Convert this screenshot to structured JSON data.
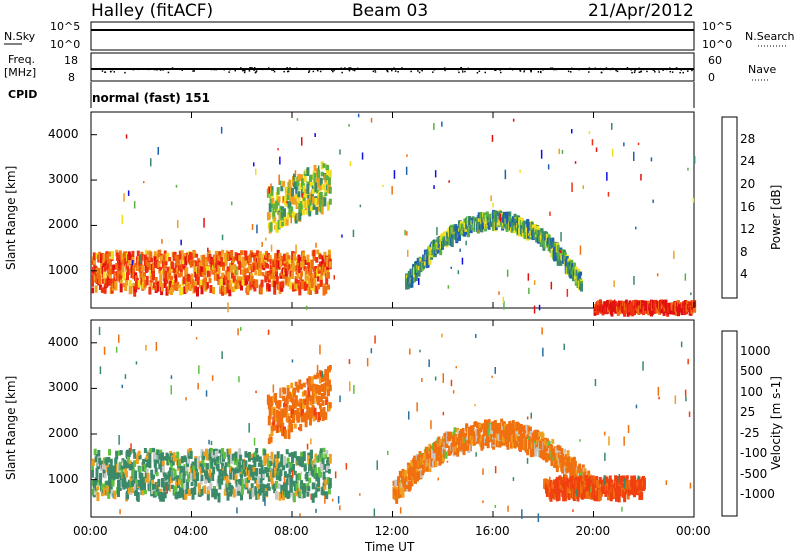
{
  "header": {
    "station": "Halley (fitACF)",
    "beam": "Beam 03",
    "date": "21/Apr/2012"
  },
  "aux_panels": {
    "nsky_label": "N.Sky",
    "nsearch_label": "N.Search",
    "nsky_ticks": [
      "10^5",
      "10^0"
    ],
    "nsearch_ticks": [
      "10^5",
      "10^0"
    ],
    "freq_label": "Freq.",
    "freq_unit": "[MHz]",
    "freq_ticks": [
      "18",
      "8"
    ],
    "nave_label": "Nave",
    "nave_ticks": [
      "60",
      "0"
    ],
    "cpid_label": "CPID",
    "cpid_value": "normal (fast) 151"
  },
  "axes": {
    "ylabel": "Slant Range [km]",
    "xlabel": "Time UT",
    "x_ticks": [
      "00:00",
      "04:00",
      "08:00",
      "12:00",
      "16:00",
      "20:00",
      "00:00"
    ],
    "y_ticks": [
      "1000",
      "2000",
      "3000",
      "4000"
    ]
  },
  "colorbars": {
    "power": {
      "label": "Power [dB]",
      "ticks": [
        "28",
        "24",
        "20",
        "16",
        "12",
        "8",
        "4"
      ],
      "colors": [
        "#1010e0",
        "#2060b0",
        "#3a8a6a",
        "#5ab040",
        "#f0e020",
        "#f0a020",
        "#f07010",
        "#f03010",
        "#e01010"
      ]
    },
    "velocity": {
      "label": "Velocity [m s-1]",
      "ticks": [
        "1000",
        "500",
        "100",
        "25",
        "-25",
        "-100",
        "-500",
        "-1000"
      ],
      "colors": [
        "#1e40c0",
        "#2a70a0",
        "#3a8a6a",
        "#60c040",
        "#c8c8c8",
        "#f0a020",
        "#f07010",
        "#f04010",
        "#e01010"
      ]
    }
  },
  "chart_data": [
    {
      "type": "heatmap",
      "title": "Power",
      "xlabel": "Time UT",
      "ylabel": "Slant Range [km]",
      "xlim": [
        "00:00",
        "24:00"
      ],
      "ylim": [
        180,
        4500
      ],
      "colorbar_range": [
        0,
        30
      ],
      "colorbar_label": "Power [dB]",
      "features": [
        {
          "t_start": 0,
          "t_end": 9.5,
          "range_center": 1050,
          "thickness": 420,
          "value_db": 22
        },
        {
          "t_start": 7.0,
          "t_end": 9.5,
          "range_center": 2400,
          "thickness": 500,
          "value_db": 14
        },
        {
          "t_start": 12.5,
          "t_end": 19.5,
          "range_center": 2200,
          "thickness": 150,
          "value_db": 10
        },
        {
          "t_start": 20.0,
          "t_end": 24.0,
          "range_center": 250,
          "thickness": 120,
          "value_db": 26
        }
      ]
    },
    {
      "type": "heatmap",
      "title": "Velocity",
      "xlabel": "Time UT",
      "ylabel": "Slant Range [km]",
      "xlim": [
        "00:00",
        "24:00"
      ],
      "ylim": [
        180,
        4500
      ],
      "colorbar_range": [
        -1000,
        1000
      ],
      "colorbar_label": "Velocity [m s-1]",
      "features": [
        {
          "t_start": 0,
          "t_end": 9.5,
          "range_center": 1200,
          "thickness": 500,
          "value_ms": 150
        },
        {
          "t_start": 7.0,
          "t_end": 9.5,
          "range_center": 2400,
          "thickness": 500,
          "value_ms": -300
        },
        {
          "t_start": 12.0,
          "t_end": 20.0,
          "range_center": 2100,
          "thickness": 250,
          "value_ms": -200
        },
        {
          "t_start": 18.0,
          "t_end": 22.0,
          "range_center": 900,
          "thickness": 200,
          "value_ms": -600
        }
      ]
    }
  ]
}
